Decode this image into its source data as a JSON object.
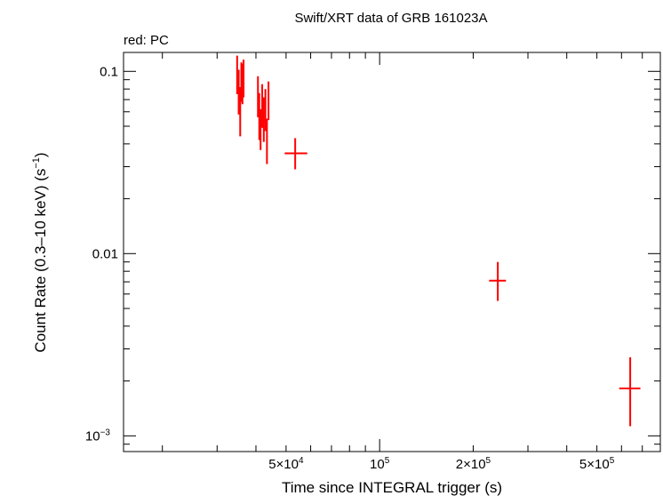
{
  "chart_data": {
    "type": "scatter",
    "title": "Swift/XRT data of GRB 161023A",
    "subtitle": "red: PC",
    "xlabel": "Time since INTEGRAL trigger (s)",
    "ylabel_main": "Count Rate (0.3–10 keV) (s",
    "ylabel_sup": "−1",
    "ylabel_end": ")",
    "x_scale": "log",
    "y_scale": "log",
    "xlim": [
      15000,
      800000
    ],
    "ylim": [
      0.00082,
      0.127
    ],
    "x_ticks": [
      {
        "value": 50000,
        "mant": "5×10",
        "exp": "4"
      },
      {
        "value": 100000,
        "mant": "10",
        "exp": "5"
      },
      {
        "value": 200000,
        "mant": "2×10",
        "exp": "5"
      },
      {
        "value": 500000,
        "mant": "5×10",
        "exp": "5"
      }
    ],
    "y_ticks": [
      {
        "value": 0.1,
        "mant": "0.1",
        "exp": ""
      },
      {
        "value": 0.01,
        "mant": "0.01",
        "exp": ""
      },
      {
        "value": 0.001,
        "mant": "10",
        "exp": "−3"
      }
    ],
    "grid": false,
    "series": [
      {
        "color": "#ff0000",
        "points": [
          {
            "x": 34800,
            "xlo": 34600,
            "xhi": 35000,
            "y": 0.1,
            "ylo": 0.075,
            "yhi": 0.122
          },
          {
            "x": 35200,
            "xlo": 35000,
            "xhi": 35400,
            "y": 0.08,
            "ylo": 0.058,
            "yhi": 0.102
          },
          {
            "x": 35600,
            "xlo": 35400,
            "xhi": 35800,
            "y": 0.06,
            "ylo": 0.044,
            "yhi": 0.082
          },
          {
            "x": 35900,
            "xlo": 35700,
            "xhi": 36100,
            "y": 0.09,
            "ylo": 0.068,
            "yhi": 0.112
          },
          {
            "x": 36200,
            "xlo": 36000,
            "xhi": 36400,
            "y": 0.088,
            "ylo": 0.066,
            "yhi": 0.11
          },
          {
            "x": 36500,
            "xlo": 36300,
            "xhi": 36700,
            "y": 0.095,
            "ylo": 0.072,
            "yhi": 0.116
          },
          {
            "x": 40600,
            "xlo": 40400,
            "xhi": 40800,
            "y": 0.075,
            "ylo": 0.056,
            "yhi": 0.094
          },
          {
            "x": 41000,
            "xlo": 40800,
            "xhi": 41200,
            "y": 0.057,
            "ylo": 0.042,
            "yhi": 0.076
          },
          {
            "x": 41400,
            "xlo": 41200,
            "xhi": 41600,
            "y": 0.048,
            "ylo": 0.037,
            "yhi": 0.062
          },
          {
            "x": 41900,
            "xlo": 41700,
            "xhi": 42100,
            "y": 0.065,
            "ylo": 0.049,
            "yhi": 0.085
          },
          {
            "x": 42400,
            "xlo": 42200,
            "xhi": 42600,
            "y": 0.055,
            "ylo": 0.041,
            "yhi": 0.072
          },
          {
            "x": 42900,
            "xlo": 42700,
            "xhi": 43100,
            "y": 0.062,
            "ylo": 0.047,
            "yhi": 0.08
          },
          {
            "x": 43400,
            "xlo": 43200,
            "xhi": 43600,
            "y": 0.042,
            "ylo": 0.031,
            "yhi": 0.055
          },
          {
            "x": 43900,
            "xlo": 43700,
            "xhi": 44100,
            "y": 0.07,
            "ylo": 0.054,
            "yhi": 0.088
          },
          {
            "x": 53500,
            "xlo": 49500,
            "xhi": 58500,
            "y": 0.0355,
            "ylo": 0.029,
            "yhi": 0.043
          },
          {
            "x": 240000,
            "xlo": 225000,
            "xhi": 255000,
            "y": 0.0071,
            "ylo": 0.0055,
            "yhi": 0.009
          },
          {
            "x": 640000,
            "xlo": 590000,
            "xhi": 690000,
            "y": 0.00182,
            "ylo": 0.00113,
            "yhi": 0.0027
          }
        ]
      }
    ]
  }
}
